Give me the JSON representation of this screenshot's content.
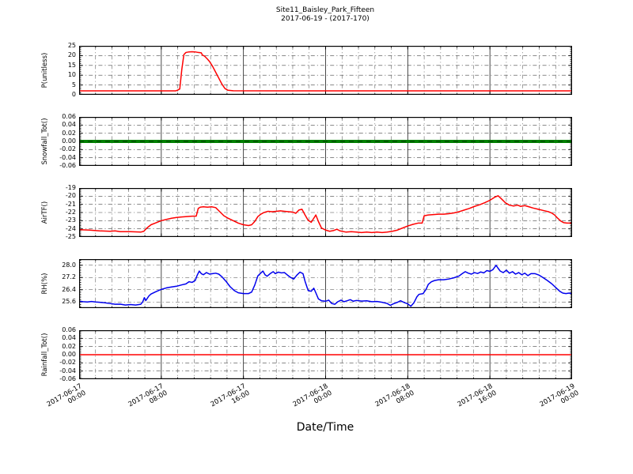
{
  "figure": {
    "title_line1": "Site11_Baisley_Park_Fifteen",
    "title_line2": "2017-06-19 - (2017-170)",
    "xlabel": "Date/Time",
    "background": "#ffffff",
    "grid_color": "#444444",
    "spine_color": "#000000"
  },
  "x_axis": {
    "unit": "hours since first tick",
    "range_hours": [
      0,
      48
    ],
    "major_tick_hours": [
      0,
      8,
      16,
      24,
      32,
      40,
      48
    ],
    "minor_step_hours": 1.6,
    "tick_labels": [
      {
        "date": "2017-06-17",
        "time": "00:00"
      },
      {
        "date": "2017-06-17",
        "time": "08:00"
      },
      {
        "date": "2017-06-17",
        "time": "16:00"
      },
      {
        "date": "2017-06-18",
        "time": "00:00"
      },
      {
        "date": "2017-06-18",
        "time": "08:00"
      },
      {
        "date": "2017-06-18",
        "time": "16:00"
      },
      {
        "date": "2017-06-19",
        "time": "00:00"
      }
    ]
  },
  "chart_data": [
    {
      "id": "p",
      "type": "line",
      "ylabel": "P(unitless)",
      "color": "#ff0000",
      "line_width": 1.5,
      "ylim": [
        0,
        25
      ],
      "yticks": [
        0,
        5,
        10,
        15,
        20,
        25
      ],
      "ytick_labels": [
        "0",
        "5",
        "10",
        "15",
        "20",
        "25"
      ],
      "points": [
        [
          0,
          2
        ],
        [
          4,
          2
        ],
        [
          8,
          2
        ],
        [
          9.4,
          2
        ],
        [
          9.6,
          2.4
        ],
        [
          9.8,
          3
        ],
        [
          10.0,
          13
        ],
        [
          10.2,
          20.5
        ],
        [
          10.4,
          21.6
        ],
        [
          10.7,
          21.9
        ],
        [
          11.0,
          22
        ],
        [
          11.3,
          21.9
        ],
        [
          11.6,
          21.6
        ],
        [
          11.9,
          21.4
        ],
        [
          12.0,
          20.3
        ],
        [
          12.2,
          19.8
        ],
        [
          12.5,
          18.2
        ],
        [
          12.7,
          17
        ],
        [
          13.0,
          14.5
        ],
        [
          13.3,
          11.5
        ],
        [
          13.6,
          8.5
        ],
        [
          13.9,
          5.5
        ],
        [
          14.2,
          3.2
        ],
        [
          14.5,
          2.3
        ],
        [
          15.0,
          2.05
        ],
        [
          20,
          2
        ],
        [
          26,
          2
        ],
        [
          32,
          2
        ],
        [
          38,
          2
        ],
        [
          44,
          2
        ],
        [
          48,
          2
        ]
      ]
    },
    {
      "id": "snowfall",
      "type": "line",
      "ylabel": "Snowfall_Tot()",
      "color": "#008000",
      "line_width": 4,
      "overlay": {
        "color": "#004f00",
        "width": 1.6,
        "dash": "6 5"
      },
      "ylim": [
        -0.06,
        0.06
      ],
      "yticks": [
        -0.06,
        -0.04,
        -0.02,
        0.0,
        0.02,
        0.04,
        0.06
      ],
      "ytick_labels": [
        "-0.06",
        "-0.04",
        "-0.02",
        "0.00",
        "0.02",
        "0.04",
        "0.06"
      ],
      "points": [
        [
          0,
          0
        ],
        [
          48,
          0
        ]
      ]
    },
    {
      "id": "airtf",
      "type": "line",
      "ylabel": "AirTF()",
      "color": "#ff0000",
      "line_width": 1.5,
      "ylim": [
        -25,
        -19
      ],
      "yticks": [
        -25,
        -24,
        -23,
        -22,
        -21,
        -20,
        -19
      ],
      "ytick_labels": [
        "-25",
        "-24",
        "-23",
        "-22",
        "-21",
        "-20",
        "-19"
      ],
      "points": [
        [
          0,
          -24.1
        ],
        [
          1,
          -24.15
        ],
        [
          2,
          -24.25
        ],
        [
          3,
          -24.3
        ],
        [
          3.5,
          -24.25
        ],
        [
          4,
          -24.35
        ],
        [
          5,
          -24.35
        ],
        [
          6,
          -24.4
        ],
        [
          6.3,
          -24.3
        ],
        [
          6.6,
          -23.9
        ],
        [
          7,
          -23.5
        ],
        [
          7.5,
          -23.25
        ],
        [
          8,
          -23.0
        ],
        [
          8.5,
          -22.85
        ],
        [
          9,
          -22.7
        ],
        [
          9.5,
          -22.6
        ],
        [
          10,
          -22.55
        ],
        [
          10.5,
          -22.5
        ],
        [
          11,
          -22.45
        ],
        [
          11.4,
          -22.45
        ],
        [
          11.6,
          -21.5
        ],
        [
          11.8,
          -21.35
        ],
        [
          12.1,
          -21.3
        ],
        [
          12.5,
          -21.35
        ],
        [
          12.9,
          -21.3
        ],
        [
          13.3,
          -21.4
        ],
        [
          13.7,
          -21.9
        ],
        [
          14.1,
          -22.4
        ],
        [
          14.5,
          -22.7
        ],
        [
          15,
          -23.0
        ],
        [
          15.5,
          -23.3
        ],
        [
          16,
          -23.5
        ],
        [
          16.5,
          -23.6
        ],
        [
          16.8,
          -23.5
        ],
        [
          17.1,
          -23.1
        ],
        [
          17.4,
          -22.5
        ],
        [
          17.7,
          -22.2
        ],
        [
          18,
          -22.0
        ],
        [
          18.4,
          -21.85
        ],
        [
          18.8,
          -21.9
        ],
        [
          19.2,
          -21.85
        ],
        [
          19.6,
          -21.8
        ],
        [
          20,
          -21.85
        ],
        [
          20.4,
          -21.9
        ],
        [
          20.8,
          -21.95
        ],
        [
          21.1,
          -22.1
        ],
        [
          21.4,
          -21.7
        ],
        [
          21.7,
          -21.6
        ],
        [
          22,
          -22.3
        ],
        [
          22.3,
          -22.95
        ],
        [
          22.6,
          -23.2
        ],
        [
          22.85,
          -22.7
        ],
        [
          23.05,
          -22.3
        ],
        [
          23.3,
          -23.1
        ],
        [
          23.6,
          -23.9
        ],
        [
          24,
          -24.15
        ],
        [
          24.4,
          -24.3
        ],
        [
          24.8,
          -24.2
        ],
        [
          25.1,
          -24.05
        ],
        [
          25.4,
          -24.25
        ],
        [
          26,
          -24.4
        ],
        [
          26.5,
          -24.35
        ],
        [
          27,
          -24.4
        ],
        [
          27.5,
          -24.45
        ],
        [
          28,
          -24.4
        ],
        [
          28.5,
          -24.45
        ],
        [
          29,
          -24.4
        ],
        [
          29.5,
          -24.45
        ],
        [
          30,
          -24.4
        ],
        [
          30.5,
          -24.3
        ],
        [
          31,
          -24.15
        ],
        [
          31.5,
          -23.9
        ],
        [
          32,
          -23.65
        ],
        [
          32.5,
          -23.45
        ],
        [
          33,
          -23.3
        ],
        [
          33.4,
          -23.3
        ],
        [
          33.6,
          -22.4
        ],
        [
          34,
          -22.3
        ],
        [
          34.5,
          -22.25
        ],
        [
          35,
          -22.2
        ],
        [
          35.5,
          -22.2
        ],
        [
          36,
          -22.15
        ],
        [
          36.5,
          -22.05
        ],
        [
          37,
          -21.9
        ],
        [
          37.5,
          -21.7
        ],
        [
          38,
          -21.5
        ],
        [
          38.5,
          -21.25
        ],
        [
          39,
          -21.05
        ],
        [
          39.5,
          -20.8
        ],
        [
          40,
          -20.5
        ],
        [
          40.5,
          -20.1
        ],
        [
          40.8,
          -19.95
        ],
        [
          41.1,
          -20.3
        ],
        [
          41.5,
          -20.8
        ],
        [
          41.9,
          -21.1
        ],
        [
          42.3,
          -21.2
        ],
        [
          42.7,
          -21.1
        ],
        [
          43,
          -21.25
        ],
        [
          43.4,
          -21.15
        ],
        [
          43.8,
          -21.3
        ],
        [
          44.2,
          -21.45
        ],
        [
          44.7,
          -21.6
        ],
        [
          45.2,
          -21.75
        ],
        [
          45.7,
          -21.9
        ],
        [
          46,
          -22.05
        ],
        [
          46.3,
          -22.3
        ],
        [
          46.6,
          -22.7
        ],
        [
          46.9,
          -23.05
        ],
        [
          47.2,
          -23.25
        ],
        [
          47.5,
          -23.3
        ],
        [
          48,
          -23.3
        ]
      ]
    },
    {
      "id": "rh",
      "type": "line",
      "ylabel": "RH(%)",
      "color": "#0000ee",
      "line_width": 1.5,
      "ylim": [
        25.2,
        28.4
      ],
      "yticks": [
        25.6,
        26.4,
        27.2,
        28.0
      ],
      "ytick_labels": [
        "25.6",
        "26.4",
        "27.2",
        "28.0"
      ],
      "points": [
        [
          0,
          25.65
        ],
        [
          0.4,
          25.62
        ],
        [
          0.8,
          25.6
        ],
        [
          1.2,
          25.63
        ],
        [
          1.6,
          25.6
        ],
        [
          2,
          25.58
        ],
        [
          2.5,
          25.55
        ],
        [
          3,
          25.5
        ],
        [
          3.5,
          25.45
        ],
        [
          4,
          25.46
        ],
        [
          4.5,
          25.4
        ],
        [
          5,
          25.43
        ],
        [
          5.5,
          25.4
        ],
        [
          6,
          25.45
        ],
        [
          6.2,
          25.62
        ],
        [
          6.35,
          25.88
        ],
        [
          6.5,
          25.7
        ],
        [
          6.8,
          26.0
        ],
        [
          7,
          26.12
        ],
        [
          7.5,
          26.28
        ],
        [
          8,
          26.42
        ],
        [
          8.5,
          26.52
        ],
        [
          9,
          26.58
        ],
        [
          9.5,
          26.63
        ],
        [
          10,
          26.72
        ],
        [
          10.4,
          26.78
        ],
        [
          10.7,
          26.92
        ],
        [
          11,
          26.88
        ],
        [
          11.3,
          27.0
        ],
        [
          11.5,
          27.35
        ],
        [
          11.7,
          27.62
        ],
        [
          11.9,
          27.45
        ],
        [
          12.1,
          27.38
        ],
        [
          12.4,
          27.52
        ],
        [
          12.7,
          27.42
        ],
        [
          13,
          27.45
        ],
        [
          13.3,
          27.48
        ],
        [
          13.6,
          27.42
        ],
        [
          13.9,
          27.25
        ],
        [
          14.3,
          26.95
        ],
        [
          14.7,
          26.6
        ],
        [
          15.1,
          26.35
        ],
        [
          15.5,
          26.2
        ],
        [
          16,
          26.15
        ],
        [
          16.5,
          26.15
        ],
        [
          16.8,
          26.25
        ],
        [
          17.1,
          26.7
        ],
        [
          17.4,
          27.3
        ],
        [
          17.7,
          27.5
        ],
        [
          17.9,
          27.62
        ],
        [
          18.1,
          27.38
        ],
        [
          18.3,
          27.28
        ],
        [
          18.6,
          27.45
        ],
        [
          18.9,
          27.58
        ],
        [
          19.1,
          27.45
        ],
        [
          19.4,
          27.55
        ],
        [
          19.7,
          27.5
        ],
        [
          20,
          27.52
        ],
        [
          20.3,
          27.35
        ],
        [
          20.6,
          27.2
        ],
        [
          20.9,
          27.1
        ],
        [
          21.2,
          27.35
        ],
        [
          21.5,
          27.55
        ],
        [
          21.8,
          27.45
        ],
        [
          22,
          26.95
        ],
        [
          22.3,
          26.35
        ],
        [
          22.6,
          26.3
        ],
        [
          22.85,
          26.5
        ],
        [
          23.05,
          26.2
        ],
        [
          23.3,
          25.8
        ],
        [
          23.6,
          25.68
        ],
        [
          24,
          25.65
        ],
        [
          24.3,
          25.72
        ],
        [
          24.6,
          25.5
        ],
        [
          24.9,
          25.45
        ],
        [
          25.2,
          25.62
        ],
        [
          25.5,
          25.72
        ],
        [
          25.8,
          25.62
        ],
        [
          26.1,
          25.68
        ],
        [
          26.4,
          25.75
        ],
        [
          26.7,
          25.65
        ],
        [
          27,
          25.7
        ],
        [
          27.5,
          25.66
        ],
        [
          28,
          25.68
        ],
        [
          28.5,
          25.62
        ],
        [
          29,
          25.63
        ],
        [
          29.5,
          25.58
        ],
        [
          30,
          25.5
        ],
        [
          30.3,
          25.38
        ],
        [
          30.6,
          25.48
        ],
        [
          31,
          25.58
        ],
        [
          31.3,
          25.68
        ],
        [
          31.7,
          25.55
        ],
        [
          32,
          25.48
        ],
        [
          32.3,
          25.32
        ],
        [
          32.6,
          25.55
        ],
        [
          32.9,
          25.95
        ],
        [
          33.1,
          26.1
        ],
        [
          33.5,
          26.15
        ],
        [
          33.8,
          26.45
        ],
        [
          34,
          26.75
        ],
        [
          34.3,
          26.92
        ],
        [
          34.6,
          27.0
        ],
        [
          35,
          27.05
        ],
        [
          35.5,
          27.05
        ],
        [
          36,
          27.1
        ],
        [
          36.5,
          27.18
        ],
        [
          37,
          27.3
        ],
        [
          37.3,
          27.45
        ],
        [
          37.6,
          27.58
        ],
        [
          37.9,
          27.48
        ],
        [
          38.2,
          27.42
        ],
        [
          38.5,
          27.52
        ],
        [
          38.8,
          27.46
        ],
        [
          39.1,
          27.56
        ],
        [
          39.4,
          27.5
        ],
        [
          39.7,
          27.65
        ],
        [
          40,
          27.6
        ],
        [
          40.3,
          27.72
        ],
        [
          40.6,
          28.0
        ],
        [
          40.8,
          27.8
        ],
        [
          41,
          27.62
        ],
        [
          41.3,
          27.52
        ],
        [
          41.6,
          27.68
        ],
        [
          41.9,
          27.48
        ],
        [
          42.2,
          27.58
        ],
        [
          42.5,
          27.42
        ],
        [
          42.8,
          27.52
        ],
        [
          43.1,
          27.38
        ],
        [
          43.4,
          27.48
        ],
        [
          43.7,
          27.32
        ],
        [
          44,
          27.45
        ],
        [
          44.4,
          27.45
        ],
        [
          44.8,
          27.35
        ],
        [
          45.2,
          27.18
        ],
        [
          45.6,
          27.0
        ],
        [
          46,
          26.8
        ],
        [
          46.4,
          26.55
        ],
        [
          46.8,
          26.3
        ],
        [
          47.1,
          26.18
        ],
        [
          47.4,
          26.15
        ],
        [
          47.7,
          26.18
        ],
        [
          48,
          26.15
        ]
      ]
    },
    {
      "id": "rainfall",
      "type": "line",
      "ylabel": "Rainfall_Tot()",
      "color": "#ff0000",
      "line_width": 1.6,
      "ylim": [
        -0.06,
        0.06
      ],
      "yticks": [
        -0.06,
        -0.04,
        -0.02,
        0.0,
        0.02,
        0.04,
        0.06
      ],
      "ytick_labels": [
        "-0.06",
        "-0.04",
        "-0.02",
        "0.00",
        "0.02",
        "0.04",
        "0.06"
      ],
      "points": [
        [
          0,
          0
        ],
        [
          48,
          0
        ]
      ]
    }
  ]
}
